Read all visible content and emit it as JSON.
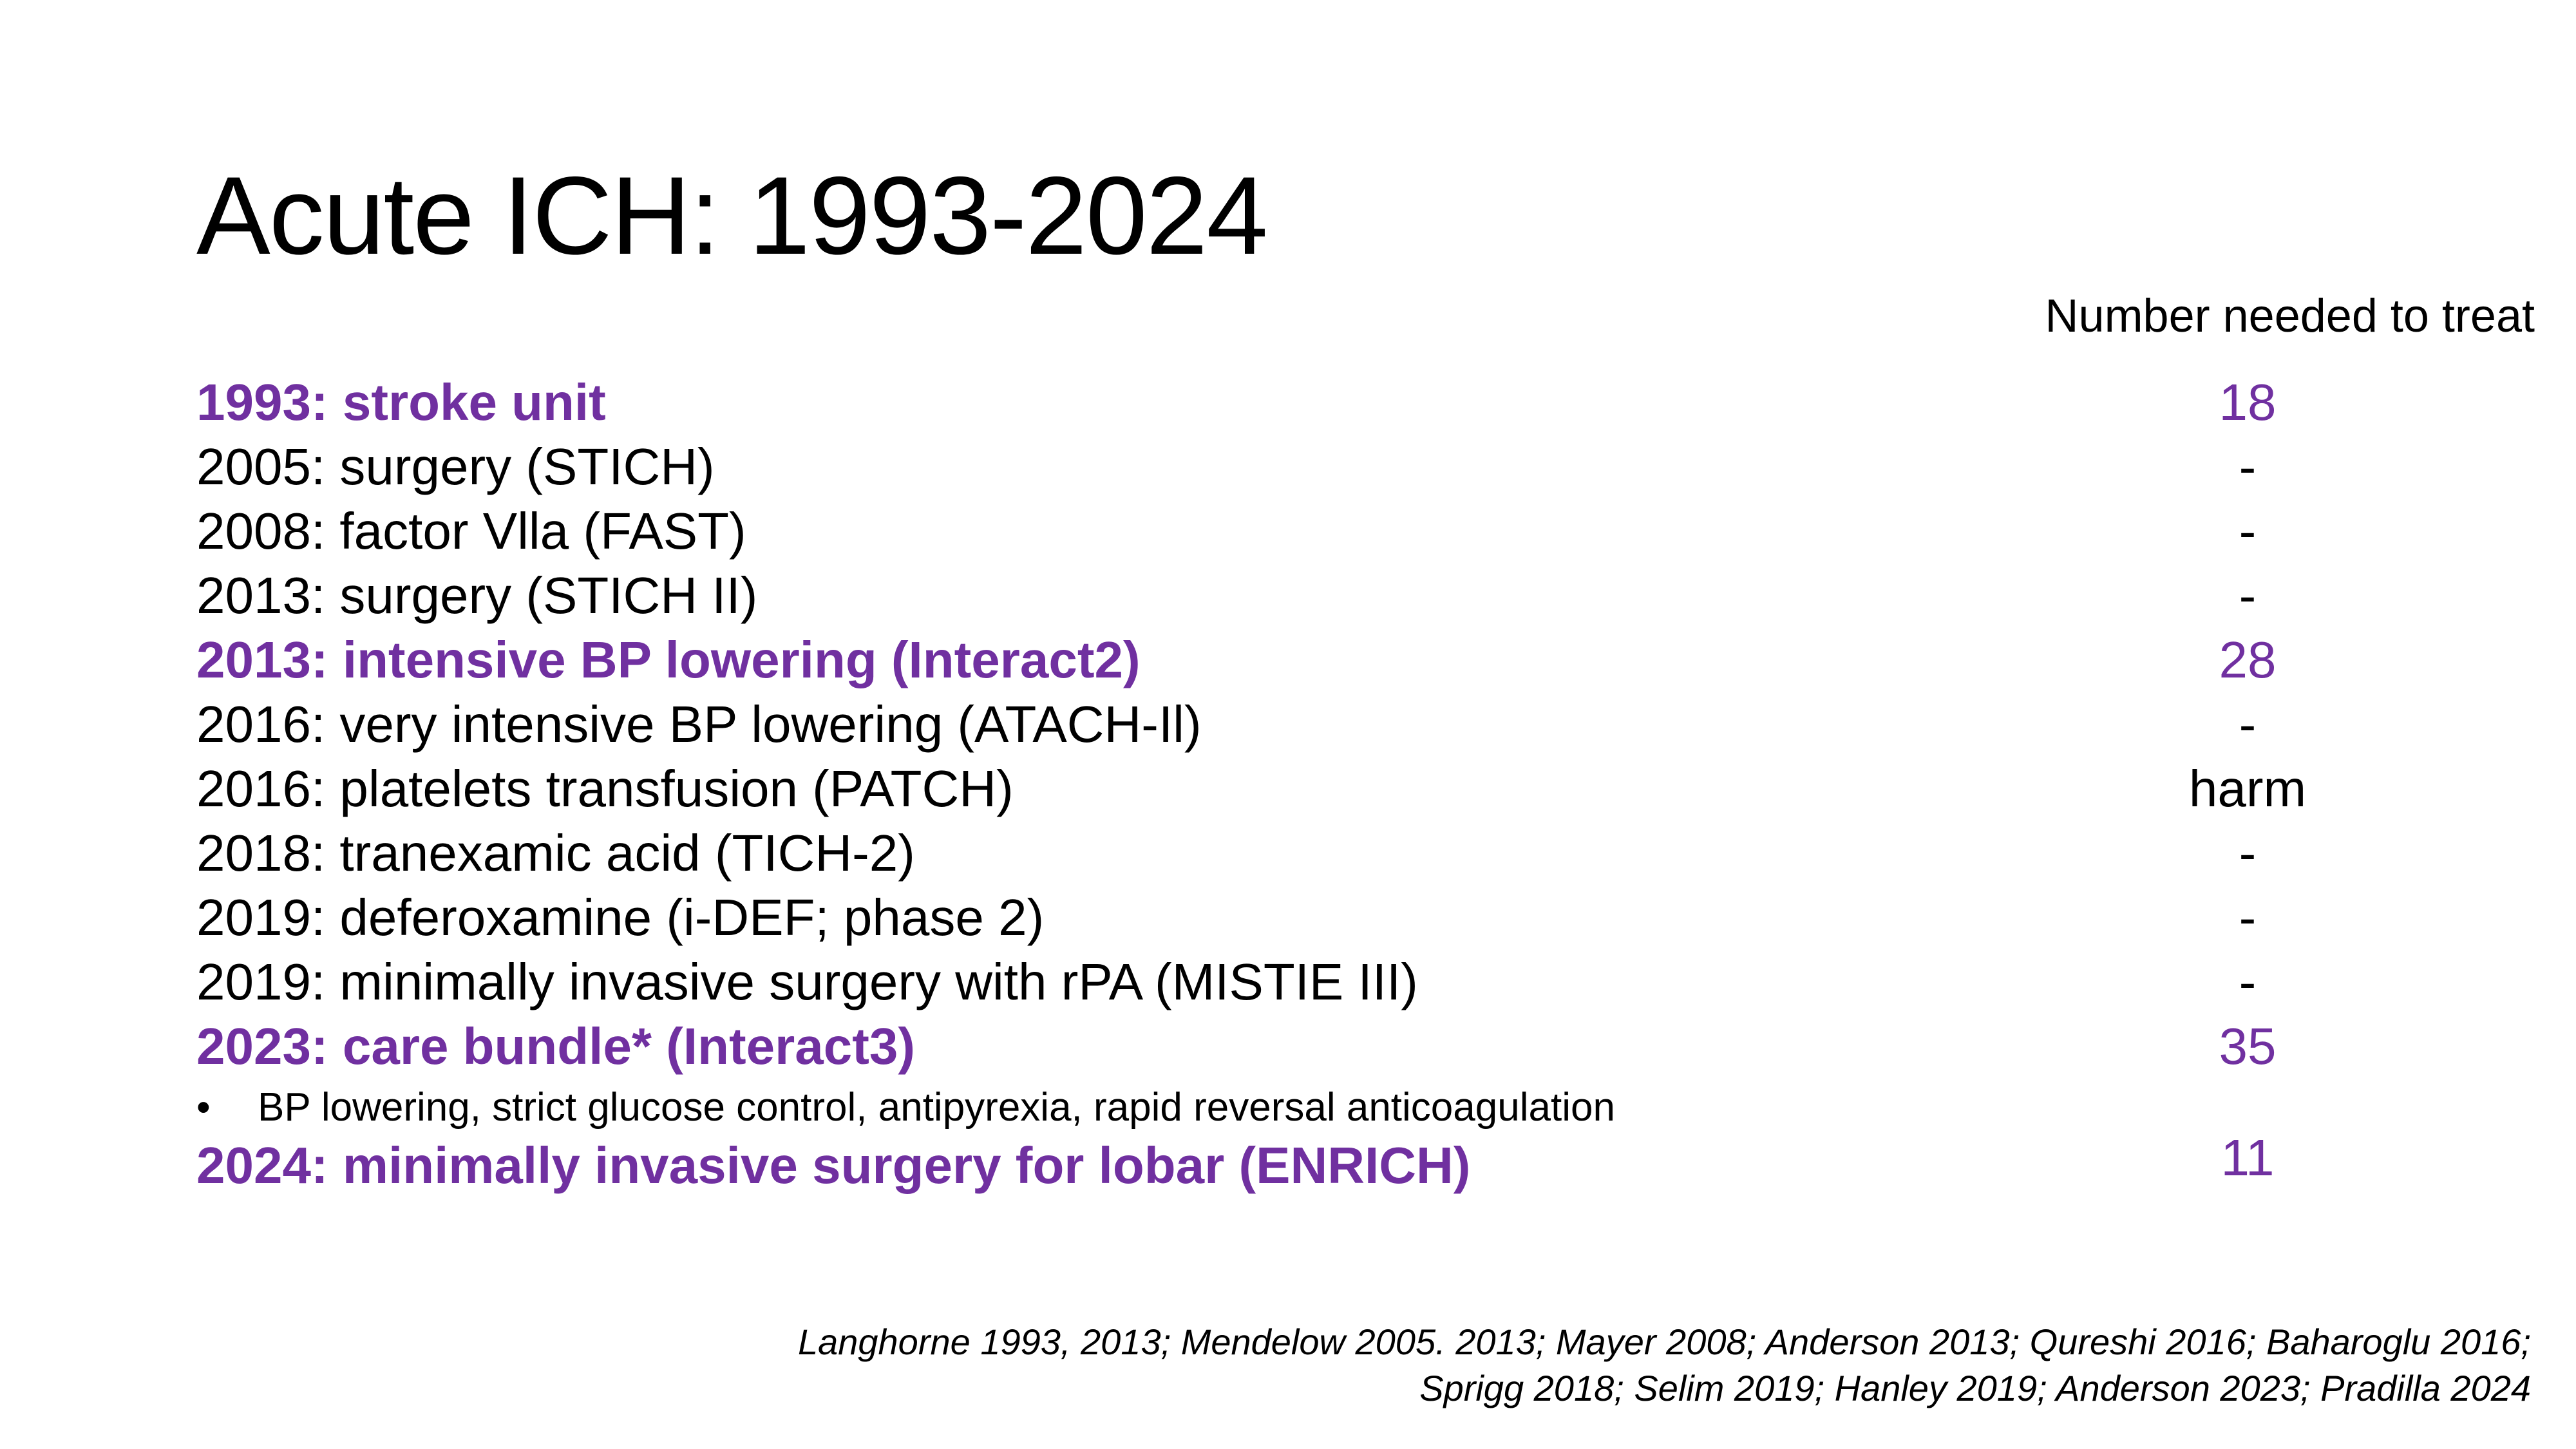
{
  "title": "Acute ICH: 1993-2024",
  "column_header": "Number needed to treat",
  "colors": {
    "highlight": "#7030a0",
    "text": "#000000",
    "background": "#ffffff"
  },
  "rows": [
    {
      "label": "1993: stroke unit",
      "value": "18",
      "highlight": true
    },
    {
      "label": "2005: surgery (STICH)",
      "value": "-",
      "highlight": false
    },
    {
      "label": "2008: factor Vlla (FAST)",
      "value": "-",
      "highlight": false
    },
    {
      "label": "2013: surgery (STICH II)",
      "value": "-",
      "highlight": false
    },
    {
      "label": "2013: intensive BP lowering (Interact2)",
      "value": "28",
      "highlight": true
    },
    {
      "label": "2016: very intensive BP lowering (ATACH-Il)",
      "value": "-",
      "highlight": false
    },
    {
      "label": "2016: platelets transfusion (PATCH)",
      "value": "harm",
      "highlight": false
    },
    {
      "label": "2018: tranexamic acid (TICH-2)",
      "value": "-",
      "highlight": false
    },
    {
      "label": "2019: deferoxamine (i-DEF; phase 2)",
      "value": "-",
      "highlight": false
    },
    {
      "label": "2019: minimally invasive surgery with rPA (MISTIE III)",
      "value": "-",
      "highlight": false
    },
    {
      "label": "2023: care bundle* (Interact3)",
      "value": "35",
      "highlight": true
    },
    {
      "label": "2024: minimally invasive surgery for lobar (ENRICH)",
      "value": "11",
      "highlight": true
    }
  ],
  "sub_bullet": {
    "marker": "•",
    "text": "BP lowering, strict glucose control, antipyrexia, rapid reversal anticoagulation"
  },
  "references": {
    "line1": "Langhorne 1993, 2013; Mendelow 2005. 2013; Mayer 2008; Anderson 2013; Qureshi 2016; Baharoglu 2016;",
    "line2": "Sprigg 2018; Selim 2019; Hanley 2019; Anderson 2023; Pradilla 2024"
  }
}
